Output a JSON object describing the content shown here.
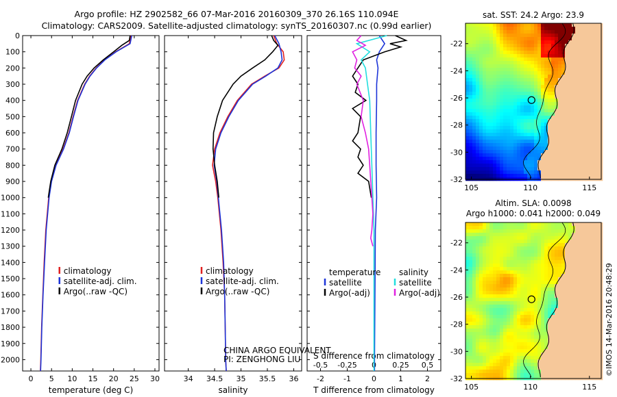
{
  "title_line1": "Argo profile: HZ 2902582_66 07-Mar-2016 20160309_370 26.16S 110.094E",
  "title_line2": "Climatology: CARS2009. Satellite-adjusted climatology: synTS_20160307.nc (0.99d earlier)",
  "footer": {
    "institution": "CHINA ARGO EQUIVALENT",
    "pi": "PI: ZENGHONG LIU",
    "watermark": "©IMOS 14-Mar-2016 20:48:29"
  },
  "colors": {
    "climatology": "#e02020",
    "satellite": "#1c34d8",
    "argo": "#000000",
    "salinity_satellite": "#22dede",
    "salinity_argo": "#e020e0",
    "land": "#f6c89a"
  },
  "depth_ticks": [
    0,
    100,
    200,
    300,
    400,
    500,
    600,
    700,
    800,
    900,
    1000,
    1100,
    1200,
    1300,
    1400,
    1500,
    1600,
    1700,
    1800,
    1900,
    2000
  ],
  "chart_data": [
    {
      "type": "line",
      "panel": "temperature",
      "xlabel": "temperature (deg C)",
      "ylabel": "",
      "xlim": [
        -2,
        31
      ],
      "ylim": [
        2070,
        0
      ],
      "xticks": [
        0,
        5,
        10,
        15,
        20,
        25,
        30
      ],
      "legend": [
        "climatology",
        "satellite-adj. clim.",
        "Argo(..raw -QC)"
      ],
      "series": [
        {
          "name": "climatology",
          "color": "#e02020",
          "depth": [
            0,
            50,
            100,
            150,
            200,
            250,
            300,
            400,
            500,
            600,
            700,
            800,
            900,
            1000,
            1200,
            1400,
            1600,
            1800,
            2000,
            2070
          ],
          "values": [
            24.2,
            23.8,
            20.5,
            17.8,
            15.8,
            14.2,
            13.0,
            11.3,
            10.2,
            9.2,
            7.8,
            6.0,
            4.9,
            4.3,
            3.6,
            3.2,
            2.9,
            2.6,
            2.4,
            2.3
          ]
        },
        {
          "name": "satellite-adj. clim.",
          "color": "#1c34d8",
          "depth": [
            0,
            50,
            100,
            150,
            200,
            250,
            300,
            400,
            500,
            600,
            700,
            800,
            900,
            1000,
            1200,
            1400,
            1600,
            1800,
            2000,
            2070
          ],
          "values": [
            24.4,
            24.0,
            20.6,
            17.9,
            15.9,
            14.3,
            13.1,
            11.4,
            10.3,
            9.3,
            7.9,
            6.1,
            5.0,
            4.4,
            3.7,
            3.3,
            2.95,
            2.65,
            2.45,
            2.35
          ]
        },
        {
          "name": "Argo(..raw -QC)",
          "color": "#000000",
          "depth": [
            0,
            30,
            60,
            100,
            150,
            200,
            250,
            300,
            400,
            500,
            600,
            700,
            800,
            900,
            1000
          ],
          "values": [
            24.0,
            23.8,
            22.0,
            20.0,
            17.5,
            15.3,
            13.6,
            12.4,
            10.8,
            9.8,
            8.8,
            7.5,
            5.8,
            4.8,
            4.2
          ]
        }
      ]
    },
    {
      "type": "line",
      "panel": "salinity",
      "xlabel": "salinity",
      "ylabel": "",
      "xlim": [
        33.55,
        36.15
      ],
      "ylim": [
        2070,
        0
      ],
      "xticks": [
        34,
        34.5,
        35,
        35.5,
        36
      ],
      "legend": [
        "climatology",
        "satellite-adj. clim.",
        "Argo(..raw -QC)"
      ],
      "series": [
        {
          "name": "climatology",
          "color": "#e02020",
          "depth": [
            0,
            50,
            100,
            150,
            200,
            250,
            300,
            400,
            500,
            600,
            700,
            800,
            900,
            1000,
            1200,
            1400,
            1600,
            1800,
            2000,
            2070
          ],
          "values": [
            35.62,
            35.68,
            35.8,
            35.82,
            35.72,
            35.45,
            35.2,
            34.93,
            34.75,
            34.6,
            34.5,
            34.46,
            34.52,
            34.56,
            34.62,
            34.66,
            34.69,
            34.7,
            34.71,
            34.72
          ]
        },
        {
          "name": "satellite-adj. clim.",
          "color": "#1c34d8",
          "depth": [
            0,
            50,
            100,
            150,
            200,
            250,
            300,
            400,
            500,
            600,
            700,
            800,
            900,
            1000,
            1200,
            1400,
            1600,
            1800,
            2000,
            2070
          ],
          "values": [
            35.64,
            35.72,
            35.76,
            35.78,
            35.7,
            35.47,
            35.22,
            34.95,
            34.77,
            34.62,
            34.52,
            34.49,
            34.54,
            34.57,
            34.63,
            34.67,
            34.69,
            34.7,
            34.71,
            34.72
          ]
        },
        {
          "name": "Argo(..raw -QC)",
          "color": "#000000",
          "depth": [
            0,
            30,
            60,
            100,
            150,
            200,
            250,
            300,
            400,
            500,
            600,
            700,
            800,
            900,
            1000
          ],
          "values": [
            35.58,
            35.62,
            35.7,
            35.6,
            35.45,
            35.22,
            35.0,
            34.85,
            34.65,
            34.55,
            34.48,
            34.47,
            34.5,
            34.55,
            34.58
          ]
        }
      ]
    },
    {
      "type": "line",
      "panel": "difference",
      "xlabel": "T difference from climatology",
      "xlabel_top": "S difference from climatology",
      "ylim": [
        2070,
        0
      ],
      "xlim": [
        -2.5,
        2.5
      ],
      "xticks": [
        -2,
        -1,
        0,
        1,
        2
      ],
      "s_xticks": [
        "-0.5",
        "-0.25",
        "0",
        "0.25",
        "0.5"
      ],
      "legend": [
        "temperature",
        "satellite",
        "Argo(-adj)",
        "salinity",
        "satellite",
        "Argo(-adj)"
      ],
      "series": [
        {
          "name": "satellite",
          "color": "#1c34d8",
          "depth": [
            0,
            50,
            100,
            150,
            200,
            300,
            400,
            600,
            800,
            1000,
            1200,
            1500,
            2000,
            2070
          ],
          "values": [
            0.2,
            0.4,
            0.2,
            0.1,
            0.15,
            0.1,
            0.1,
            0.08,
            0.08,
            0.1,
            0.05,
            0.04,
            0.02,
            0.02
          ]
        },
        {
          "name": "Argo(-adj)",
          "color": "#000000",
          "depth": [
            0,
            30,
            50,
            70,
            100,
            150,
            200,
            250,
            300,
            350,
            400,
            450,
            500,
            600,
            650,
            700,
            750,
            800,
            850,
            900,
            1000
          ],
          "values": [
            0.8,
            1.2,
            0.6,
            1.0,
            0.4,
            -0.4,
            -0.6,
            -0.8,
            -0.6,
            -0.7,
            -0.3,
            -0.8,
            -0.5,
            -0.6,
            -0.8,
            -0.5,
            -0.6,
            -0.4,
            -0.6,
            -0.2,
            -0.1
          ]
        },
        {
          "name": "satellite",
          "color": "#22dede",
          "depth": [
            0,
            50,
            100,
            150,
            200,
            300,
            400,
            600,
            800,
            1000,
            1200,
            1500,
            2000,
            2070
          ],
          "values": [
            0.12,
            -0.16,
            -0.04,
            -0.12,
            -0.08,
            -0.06,
            -0.04,
            -0.03,
            -0.02,
            -0.01,
            0,
            0,
            0,
            0
          ]
        },
        {
          "name": "Argo(-adj)",
          "color": "#e020e0",
          "depth": [
            0,
            30,
            60,
            100,
            150,
            200,
            250,
            300,
            400,
            500,
            600,
            700,
            800,
            900,
            1000,
            1100,
            1200,
            1250,
            1300
          ],
          "values": [
            -0.12,
            -0.16,
            -0.08,
            -0.2,
            -0.16,
            -0.18,
            -0.12,
            -0.16,
            -0.1,
            -0.12,
            -0.08,
            -0.05,
            -0.04,
            -0.03,
            -0.02,
            -0.01,
            -0.02,
            -0.03,
            -0.01
          ]
        }
      ]
    },
    {
      "type": "heatmap",
      "panel": "sst_map",
      "title": "sat. SST: 24.2 Argo: 23.9",
      "xlim": [
        104.5,
        116
      ],
      "ylim": [
        -32,
        -20.5
      ],
      "xticks": [
        105,
        110,
        115
      ],
      "yticks": [
        -22,
        -24,
        -26,
        -28,
        -30,
        -32
      ],
      "marker": {
        "lon": 110.094,
        "lat": -26.16
      }
    },
    {
      "type": "heatmap",
      "panel": "sla_map",
      "title": "Altim. SLA: 0.0098",
      "subtitle": "Argo h1000: 0.041 h2000: 0.049",
      "xlim": [
        104.5,
        116
      ],
      "ylim": [
        -32,
        -20.5
      ],
      "xticks": [
        105,
        110,
        115
      ],
      "yticks": [
        -22,
        -24,
        -26,
        -28,
        -30,
        -32
      ],
      "marker": {
        "lon": 110.094,
        "lat": -26.16
      }
    }
  ]
}
